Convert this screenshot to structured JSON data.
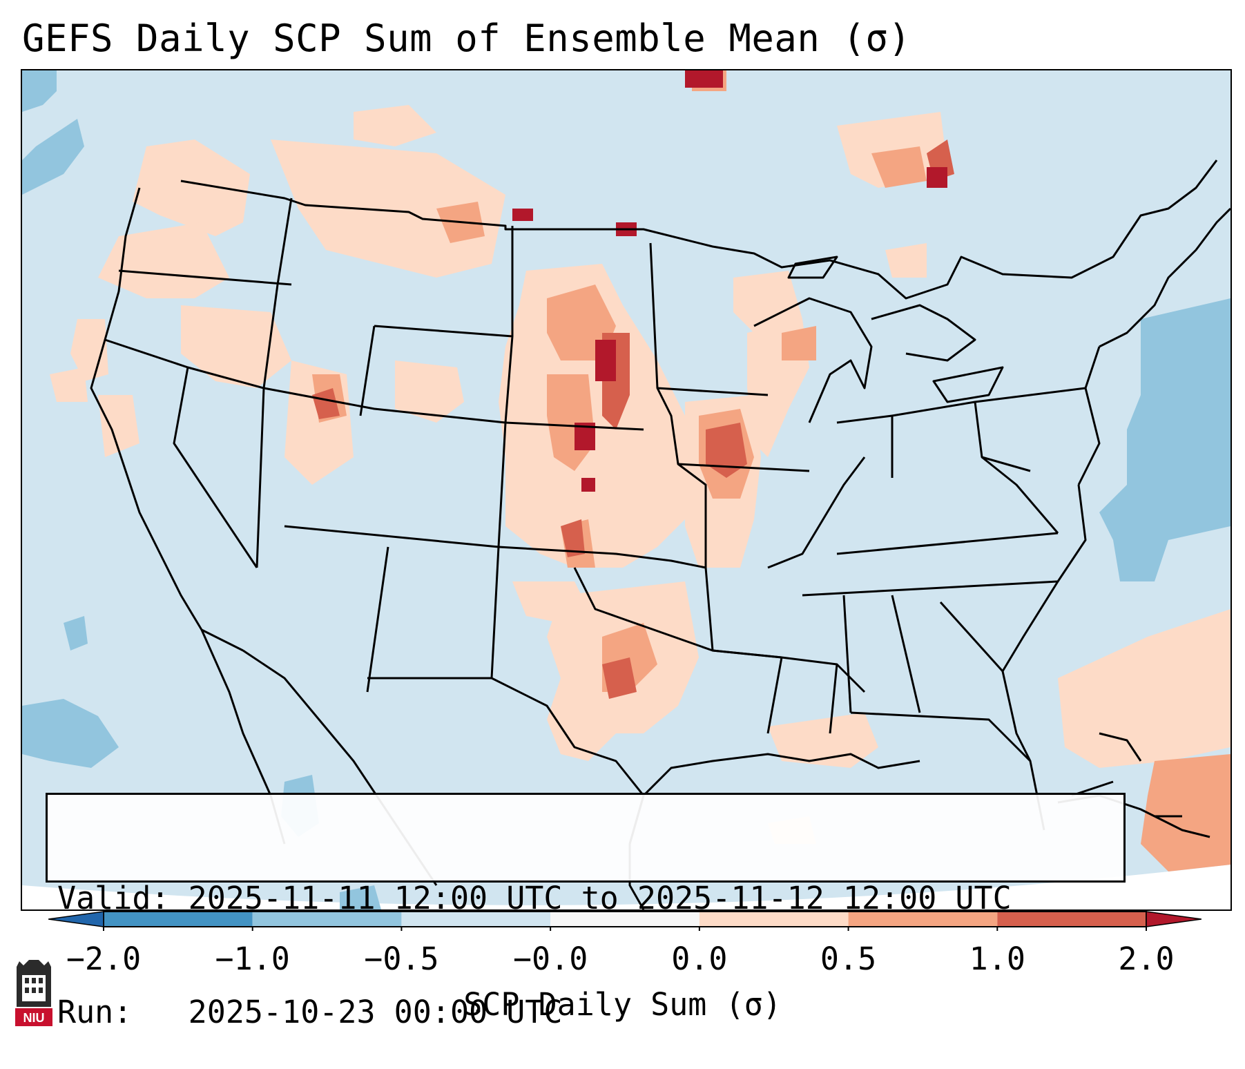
{
  "title": "GEFS Daily SCP Sum of Ensemble Mean (σ)",
  "info": {
    "valid": "Valid: 2025-11-11 12:00 UTC to 2025-11-12 12:00 UTC",
    "run": "Run:   2025-10-23 00:00 UTC"
  },
  "colorbar": {
    "label": "SCP Daily Sum (σ)",
    "ticks": [
      "−2.0",
      "−1.0",
      "−0.5",
      "−0.0",
      "0.0",
      "0.5",
      "1.0",
      "2.0"
    ],
    "colors": [
      "#2166ac",
      "#4393c3",
      "#92c5de",
      "#d1e5f0",
      "#fddbc7",
      "#f4a582",
      "#d6604d",
      "#b2182b"
    ],
    "extend": "both"
  },
  "logo_text": "NIU",
  "map": {
    "region": "Continental United States",
    "background_category": "#d1e5f0"
  }
}
